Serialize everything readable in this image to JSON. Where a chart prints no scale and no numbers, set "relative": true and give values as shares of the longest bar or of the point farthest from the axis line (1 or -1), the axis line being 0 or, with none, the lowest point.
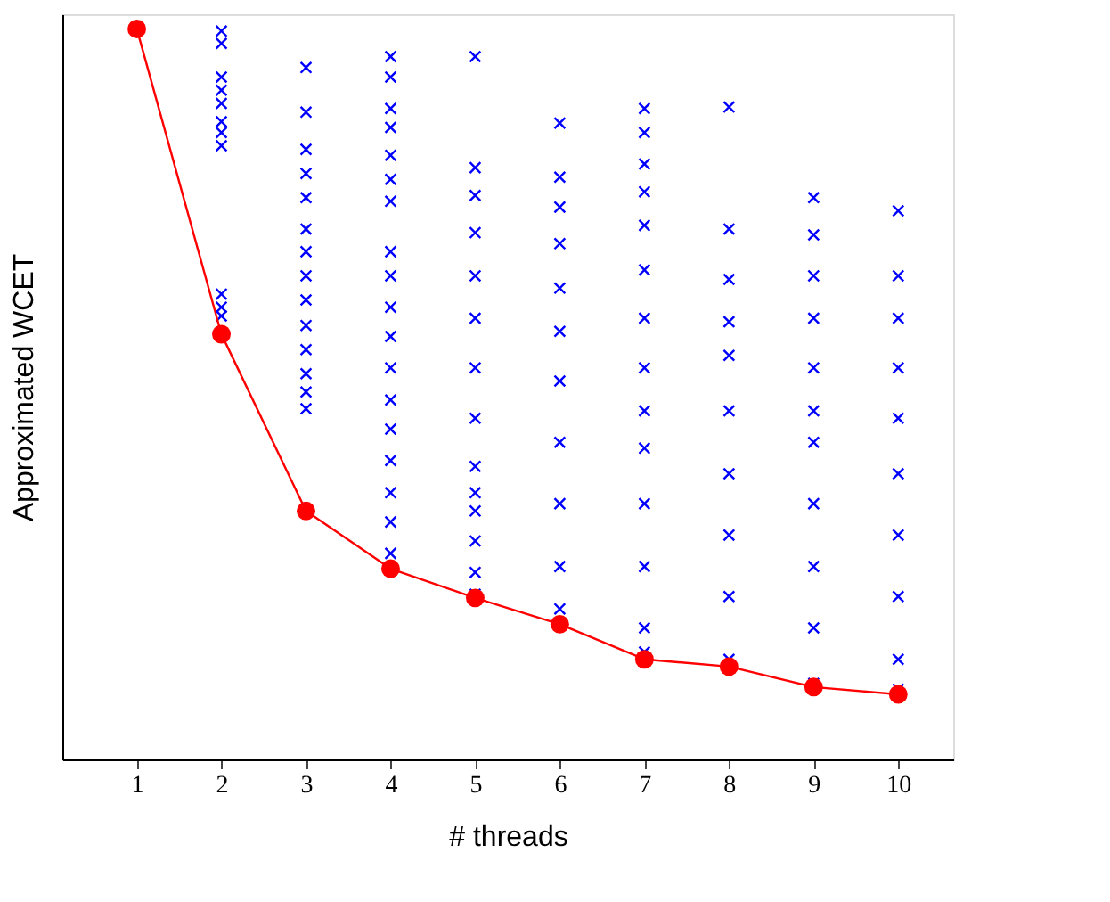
{
  "chart_data": {
    "type": "scatter",
    "xlabel": "# threads",
    "ylabel": "Approximated WCET",
    "relative": true,
    "xlim": [
      0.12,
      10.65
    ],
    "xticks": [
      1,
      2,
      3,
      4,
      5,
      6,
      7,
      8,
      9,
      10
    ],
    "grid": false,
    "series": [
      {
        "color": "#0000ff",
        "marker": "cross",
        "x": [
          2,
          2,
          2,
          2,
          2,
          2,
          2,
          2,
          2,
          2,
          2,
          3,
          3,
          3,
          3,
          3,
          3,
          3,
          3,
          3,
          3,
          3,
          3,
          3,
          3,
          4,
          4,
          4,
          4,
          4,
          4,
          4,
          4,
          4,
          4,
          4,
          4,
          4,
          4,
          4,
          4,
          4,
          4,
          5,
          5,
          5,
          5,
          5,
          5,
          5,
          5,
          5,
          5,
          5,
          5,
          5,
          5,
          6,
          6,
          6,
          6,
          6,
          6,
          6,
          6,
          6,
          6,
          6,
          7,
          7,
          7,
          7,
          7,
          7,
          7,
          7,
          7,
          7,
          7,
          7,
          7,
          7,
          8,
          8,
          8,
          8,
          8,
          8,
          8,
          8,
          8,
          8,
          9,
          9,
          9,
          9,
          9,
          9,
          9,
          9,
          9,
          9,
          9,
          10,
          10,
          10,
          10,
          10,
          10,
          10,
          10,
          10,
          10
        ],
        "values": [
          0.997,
          0.98,
          0.934,
          0.916,
          0.898,
          0.873,
          0.858,
          0.84,
          0.637,
          0.619,
          0.607,
          0.947,
          0.886,
          0.835,
          0.802,
          0.769,
          0.726,
          0.695,
          0.662,
          0.629,
          0.594,
          0.561,
          0.528,
          0.503,
          0.48,
          0.962,
          0.934,
          0.891,
          0.865,
          0.827,
          0.794,
          0.764,
          0.695,
          0.662,
          0.619,
          0.579,
          0.536,
          0.492,
          0.452,
          0.409,
          0.365,
          0.325,
          0.282,
          0.962,
          0.81,
          0.772,
          0.721,
          0.662,
          0.604,
          0.536,
          0.467,
          0.401,
          0.365,
          0.34,
          0.299,
          0.256,
          0.226,
          0.871,
          0.797,
          0.756,
          0.706,
          0.645,
          0.586,
          0.518,
          0.434,
          0.35,
          0.264,
          0.206,
          0.891,
          0.858,
          0.815,
          0.777,
          0.731,
          0.67,
          0.604,
          0.536,
          0.477,
          0.426,
          0.35,
          0.264,
          0.18,
          0.147,
          0.893,
          0.726,
          0.657,
          0.599,
          0.553,
          0.477,
          0.391,
          0.307,
          0.223,
          0.137,
          0.769,
          0.718,
          0.662,
          0.604,
          0.536,
          0.477,
          0.434,
          0.35,
          0.264,
          0.18,
          0.104,
          0.751,
          0.662,
          0.604,
          0.536,
          0.467,
          0.391,
          0.307,
          0.223,
          0.137,
          0.096
        ]
      },
      {
        "type": "line",
        "color": "#ff0000",
        "marker": "circle",
        "x": [
          1,
          2,
          3,
          4,
          5,
          6,
          7,
          8,
          9,
          10
        ],
        "values": [
          1.0,
          0.582,
          0.34,
          0.261,
          0.221,
          0.185,
          0.137,
          0.127,
          0.099,
          0.089
        ]
      }
    ]
  }
}
